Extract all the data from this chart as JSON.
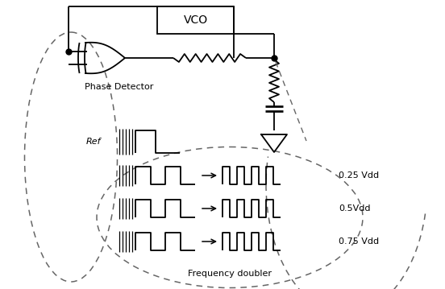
{
  "bg_color": "#ffffff",
  "line_color": "#000000",
  "dashed_color": "#666666",
  "figsize": [
    5.52,
    3.59
  ],
  "dpi": 100,
  "vco_label": "VCO",
  "phase_det_label": "Phase Detector",
  "ref_label": "Ref",
  "freq_doubler_label": "Frequency doubler",
  "vdd_labels": [
    "0.25 Vdd",
    "0.5Vdd",
    "0.75 Vdd"
  ]
}
